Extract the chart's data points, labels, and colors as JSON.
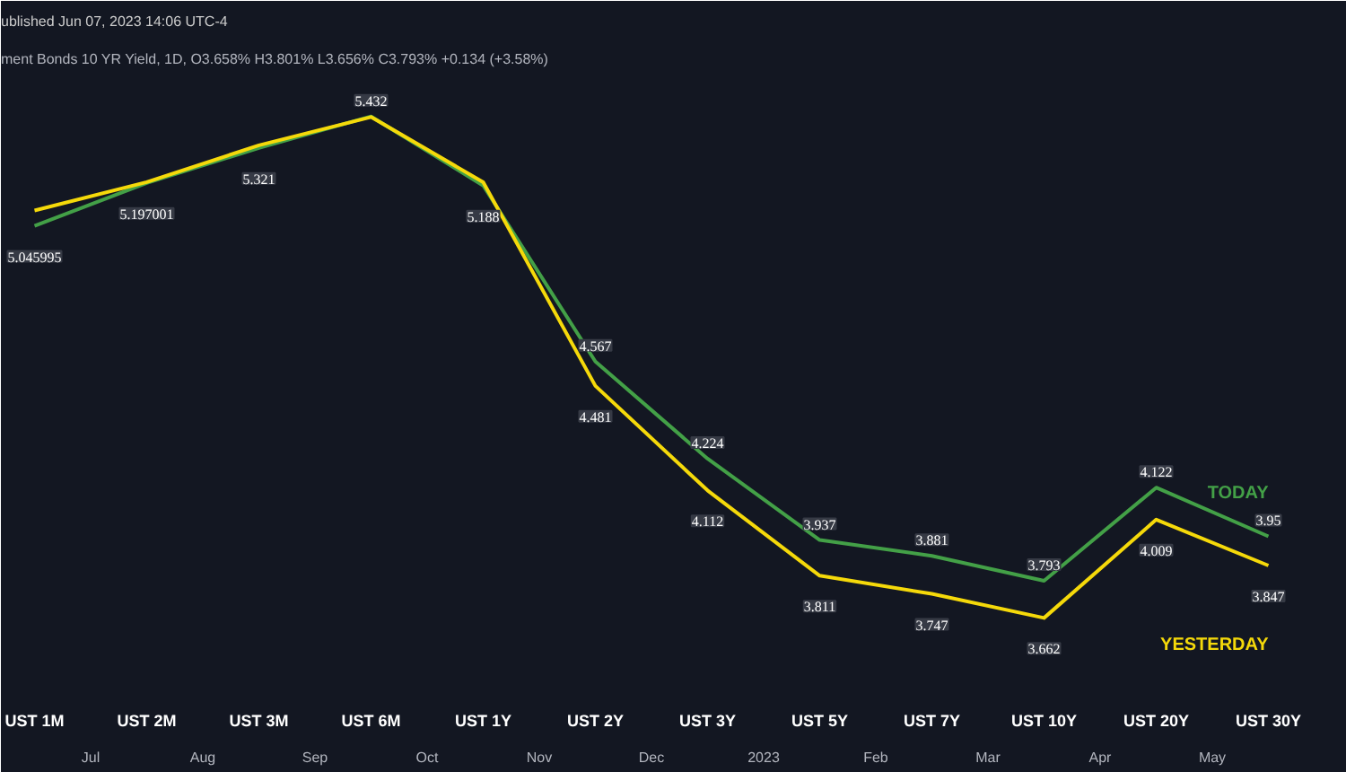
{
  "chart_data": {
    "type": "line",
    "categories": [
      "UST 1M",
      "UST 2M",
      "UST 3M",
      "UST 6M",
      "UST 1Y",
      "UST 2Y",
      "UST 3Y",
      "UST 5Y",
      "UST 7Y",
      "UST 10Y",
      "UST 20Y",
      "UST 30Y"
    ],
    "series": [
      {
        "name": "TODAY",
        "color": "#43a047",
        "values": [
          5.045995,
          5.197001,
          5.321,
          5.432,
          5.188,
          4.567,
          4.224,
          3.937,
          3.881,
          3.793,
          4.122,
          3.95
        ],
        "value_labels": [
          "5.045995",
          "5.197001",
          "5.321",
          "5.432",
          "5.188",
          "4.567",
          "4.224",
          "3.937",
          "3.881",
          "3.793",
          "4.122",
          "3.95"
        ]
      },
      {
        "name": "YESTERDAY",
        "color": "#f5d90a",
        "values": [
          5.1,
          5.2,
          5.33,
          5.43,
          5.2,
          4.481,
          4.112,
          3.811,
          3.747,
          3.662,
          4.009,
          3.847
        ],
        "value_labels": [
          null,
          null,
          null,
          null,
          null,
          "4.481",
          "4.112",
          "3.811",
          "3.747",
          "3.662",
          "4.009",
          "3.847"
        ]
      }
    ],
    "annotations": [
      "ublished Jun 07, 2023 14:06 UTC-4",
      "ment Bonds 10 YR Yield, 1D, O3.658% H3.801% L3.656% C3.793% +0.134 (+3.58%)",
      "Jul",
      "Aug",
      "Sep",
      "Oct",
      "Nov",
      "Dec",
      "2023",
      "Feb",
      "Mar",
      "Apr",
      "May"
    ],
    "grid": false
  }
}
